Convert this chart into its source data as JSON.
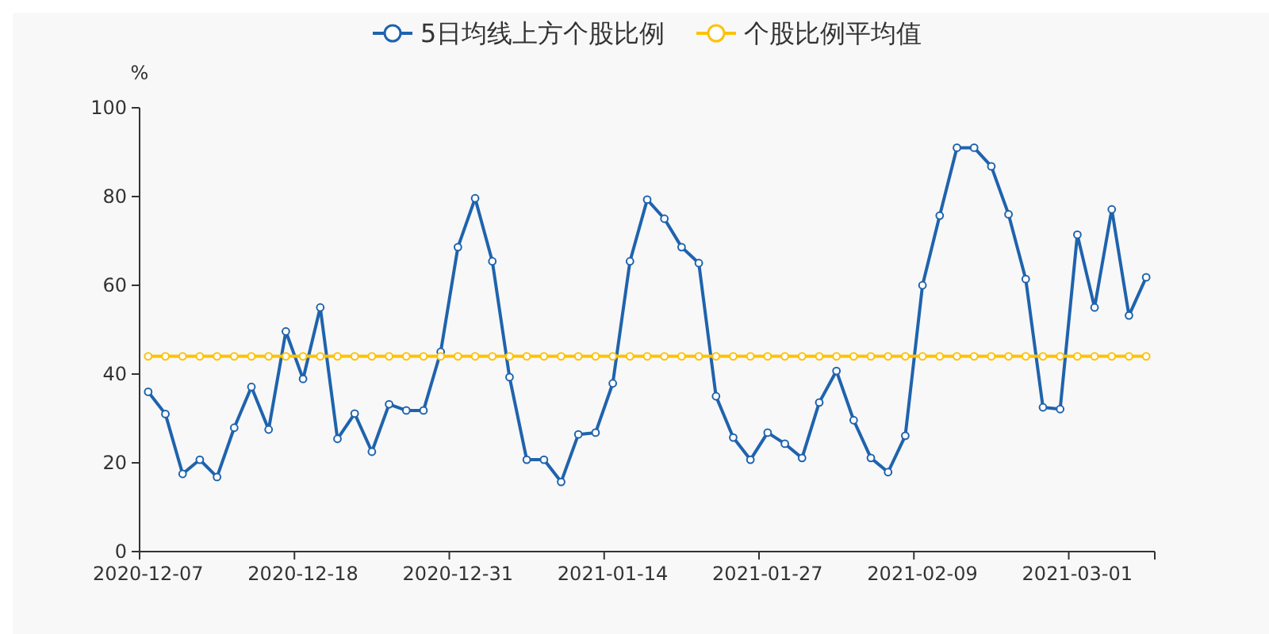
{
  "chart_data": {
    "type": "line",
    "ylabel": "%",
    "categories": [
      "2020-12-07",
      null,
      null,
      null,
      null,
      null,
      null,
      null,
      null,
      "2020-12-18",
      null,
      null,
      null,
      null,
      null,
      null,
      null,
      null,
      "2020-12-31",
      null,
      null,
      null,
      null,
      null,
      null,
      null,
      null,
      "2021-01-14",
      null,
      null,
      null,
      null,
      null,
      null,
      null,
      null,
      "2021-01-27",
      null,
      null,
      null,
      null,
      null,
      null,
      null,
      null,
      "2021-02-09",
      null,
      null,
      null,
      null,
      null,
      null,
      null,
      null,
      "2021-03-01",
      null,
      null,
      null,
      null
    ],
    "series": [
      {
        "name": "5日均线上方个股比例",
        "color": "#1f63ad",
        "values": [
          36,
          31,
          17.5,
          20.7,
          16.8,
          27.9,
          37.1,
          27.5,
          49.6,
          38.9,
          55,
          25.4,
          31.1,
          22.5,
          33.2,
          31.8,
          31.8,
          45,
          68.6,
          79.6,
          65.4,
          39.3,
          20.7,
          20.7,
          15.7,
          26.4,
          26.8,
          37.9,
          65.4,
          79.3,
          75,
          68.6,
          65,
          35,
          25.7,
          20.7,
          26.8,
          24.3,
          21.1,
          33.6,
          40.7,
          29.6,
          21.1,
          17.9,
          26.1,
          60,
          75.7,
          91,
          91,
          86.8,
          76,
          61.4,
          32.5,
          32.1,
          71.4,
          55,
          77.1,
          53.2,
          61.8
        ]
      },
      {
        "name": "个股比例平均值",
        "color": "#fcc20a",
        "values": [
          44,
          44,
          44,
          44,
          44,
          44,
          44,
          44,
          44,
          44,
          44,
          44,
          44,
          44,
          44,
          44,
          44,
          44,
          44,
          44,
          44,
          44,
          44,
          44,
          44,
          44,
          44,
          44,
          44,
          44,
          44,
          44,
          44,
          44,
          44,
          44,
          44,
          44,
          44,
          44,
          44,
          44,
          44,
          44,
          44,
          44,
          44,
          44,
          44,
          44,
          44,
          44,
          44,
          44,
          44,
          44,
          44,
          44,
          44
        ]
      }
    ],
    "ylim": [
      0,
      100
    ],
    "yticks": [
      0,
      20,
      40,
      60,
      80,
      100
    ],
    "grid": false,
    "legend": "top",
    "marker": "circle",
    "line_style": "solid"
  }
}
